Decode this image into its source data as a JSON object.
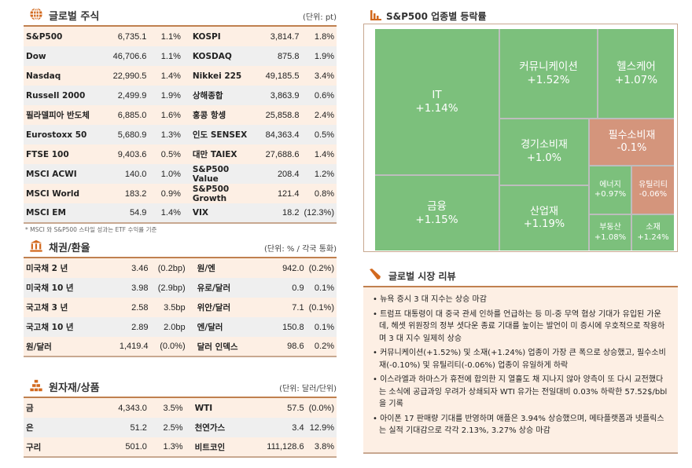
{
  "equities": {
    "title": "글로벌 주식",
    "unit": "(단위: pt)",
    "footnote": "* MSCI 와 S&P500 스타일 성과는 ETF 수익률 기준",
    "rows": [
      [
        "S&P500",
        "6,735.1",
        "1.1%",
        "KOSPI",
        "3,814.7",
        "1.8%"
      ],
      [
        "Dow",
        "46,706.6",
        "1.1%",
        "KOSDAQ",
        "875.8",
        "1.9%"
      ],
      [
        "Nasdaq",
        "22,990.5",
        "1.4%",
        "Nikkei 225",
        "49,185.5",
        "3.4%"
      ],
      [
        "Russell 2000",
        "2,499.9",
        "1.9%",
        "상해종합",
        "3,863.9",
        "0.6%"
      ],
      [
        "필라델피아 반도체",
        "6,885.0",
        "1.6%",
        "홍콩 항셍",
        "25,858.8",
        "2.4%"
      ],
      [
        "Eurostoxx 50",
        "5,680.9",
        "1.3%",
        "인도 SENSEX",
        "84,363.4",
        "0.5%"
      ],
      [
        "FTSE 100",
        "9,403.6",
        "0.5%",
        "대만 TAIEX",
        "27,688.6",
        "1.4%"
      ],
      [
        "MSCI ACWI",
        "140.0",
        "1.0%",
        "S&P500 Value",
        "208.4",
        "1.2%"
      ],
      [
        "MSCI World",
        "183.2",
        "0.9%",
        "S&P500 Growth",
        "121.4",
        "0.8%"
      ],
      [
        "MSCI EM",
        "54.9",
        "1.4%",
        "VIX",
        "18.2",
        "(12.3%)"
      ]
    ]
  },
  "bonds": {
    "title": "채권/환율",
    "unit": "(단위: % / 각국 통화)",
    "rows": [
      [
        "미국채 2 년",
        "3.46",
        "(0.2bp)",
        "원/엔",
        "942.0",
        "(0.2%)"
      ],
      [
        "미국채 10 년",
        "3.98",
        "(2.9bp)",
        "유로/달러",
        "0.9",
        "0.1%"
      ],
      [
        "국고채 3 년",
        "2.58",
        "3.5bp",
        "위안/달러",
        "7.1",
        "(0.1%)"
      ],
      [
        "국고채 10 년",
        "2.89",
        "2.0bp",
        "엔/달러",
        "150.8",
        "0.1%"
      ],
      [
        "원/달러",
        "1,419.4",
        "(0.0%)",
        "달러 인덱스",
        "98.6",
        "0.2%"
      ]
    ]
  },
  "commodities": {
    "title": "원자재/상품",
    "unit": "(단위: 달러/단위)",
    "rows": [
      [
        "금",
        "4,343.0",
        "3.5%",
        "WTI",
        "57.5",
        "(0.0%)"
      ],
      [
        "은",
        "51.2",
        "2.5%",
        "천연가스",
        "3.4",
        "12.9%"
      ],
      [
        "구리",
        "501.0",
        "1.3%",
        "비트코인",
        "111,128.6",
        "3.8%"
      ]
    ]
  },
  "sector": {
    "title": "S&P500 업종별 등락률",
    "colors": {
      "up": "#7cc07c",
      "down": "#d4957c"
    },
    "cells": [
      {
        "name": "IT",
        "value": "+1.14%"
      },
      {
        "name": "금융",
        "value": "+1.15%"
      },
      {
        "name": "커뮤니케이션",
        "value": "+1.52%"
      },
      {
        "name": "헬스케어",
        "value": "+1.07%"
      },
      {
        "name": "경기소비재",
        "value": "+1.0%"
      },
      {
        "name": "산업재",
        "value": "+1.19%"
      },
      {
        "name": "필수소비재",
        "value": "-0.1%"
      },
      {
        "name": "에너지",
        "value": "+0.97%"
      },
      {
        "name": "유틸리티",
        "value": "-0.06%"
      },
      {
        "name": "부동산",
        "value": "+1.08%"
      },
      {
        "name": "소재",
        "value": "+1.24%"
      }
    ]
  },
  "review": {
    "title": "글로벌 시장 리뷰",
    "items": [
      "뉴욕 증시 3 대 지수는 상승 마감",
      "트럼프 대통령이 대 중국 관세 인하를 언급하는 등 미-중 무역 협상 기대가 유입된 가운데, 헤셋 위원장의 정부 셧다운 종료 기대를 높이는 발언이 미 증시에 우호적으로 작용하며 3 대 지수 일제히 상승",
      "커뮤니케이션(+1.52%) 및 소재(+1.24%) 업종이 가장 큰 폭으로 상승했고, 필수소비재(-0.10%) 및 유틸리티(-0.06%) 업종이 유일하게 하락",
      "이스라엘과 하마스가 휴전에 합의한 지 열흘도 채 지나지 않아 양측이 또 다시 교전했다는 소식에 공급과잉 우려가 상쇄되자 WTI 유가는 전일대비 0.03% 하락한 57.52$/bbl 을 기록",
      "아이폰 17 판매량 기대를 반영하며 애플은 3.94% 상승했으며, 메타플랫폼과 넷플릭스는 실적 기대감으로 각각 2.13%, 3.27% 상승 마감"
    ]
  }
}
